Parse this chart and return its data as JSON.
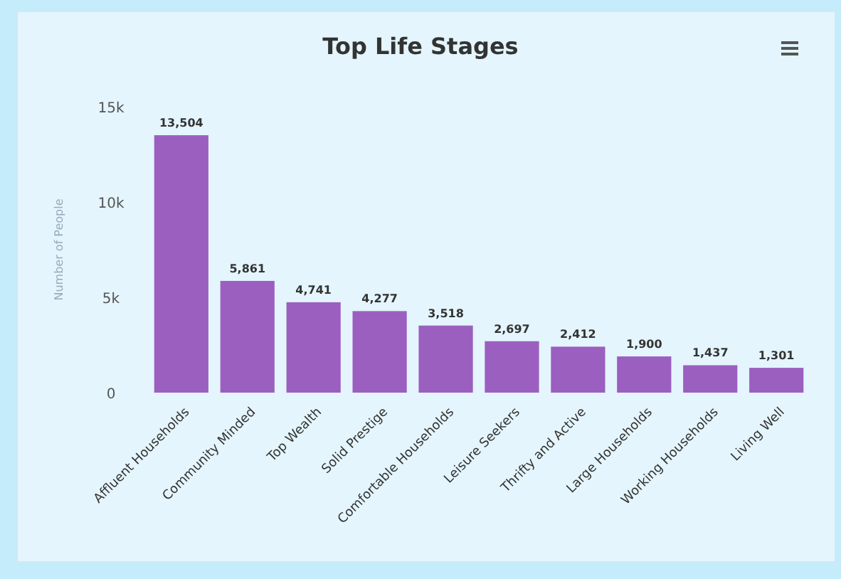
{
  "chart_data": {
    "type": "bar",
    "title": "Top Life Stages",
    "ylabel": "Number of People",
    "categories": [
      "Affluent Households",
      "Community Minded",
      "Top Wealth",
      "Solid Prestige",
      "Comfortable Households",
      "Leisure Seekers",
      "Thrifty and Active",
      "Large Households",
      "Working Households",
      "Living Well"
    ],
    "values": [
      13504,
      5861,
      4741,
      4277,
      3518,
      2697,
      2412,
      1900,
      1437,
      1301
    ],
    "value_labels": [
      "13,504",
      "5,861",
      "4,741",
      "4,277",
      "3,518",
      "2,697",
      "2,412",
      "1,900",
      "1,437",
      "1,301"
    ],
    "color": "#9b5fc0",
    "ylim": [
      0,
      15000
    ],
    "yticks": [
      {
        "value": 0,
        "label": "0"
      },
      {
        "value": 5000,
        "label": "5k"
      },
      {
        "value": 10000,
        "label": "10k"
      },
      {
        "value": 15000,
        "label": "15k"
      }
    ],
    "grid": false
  }
}
